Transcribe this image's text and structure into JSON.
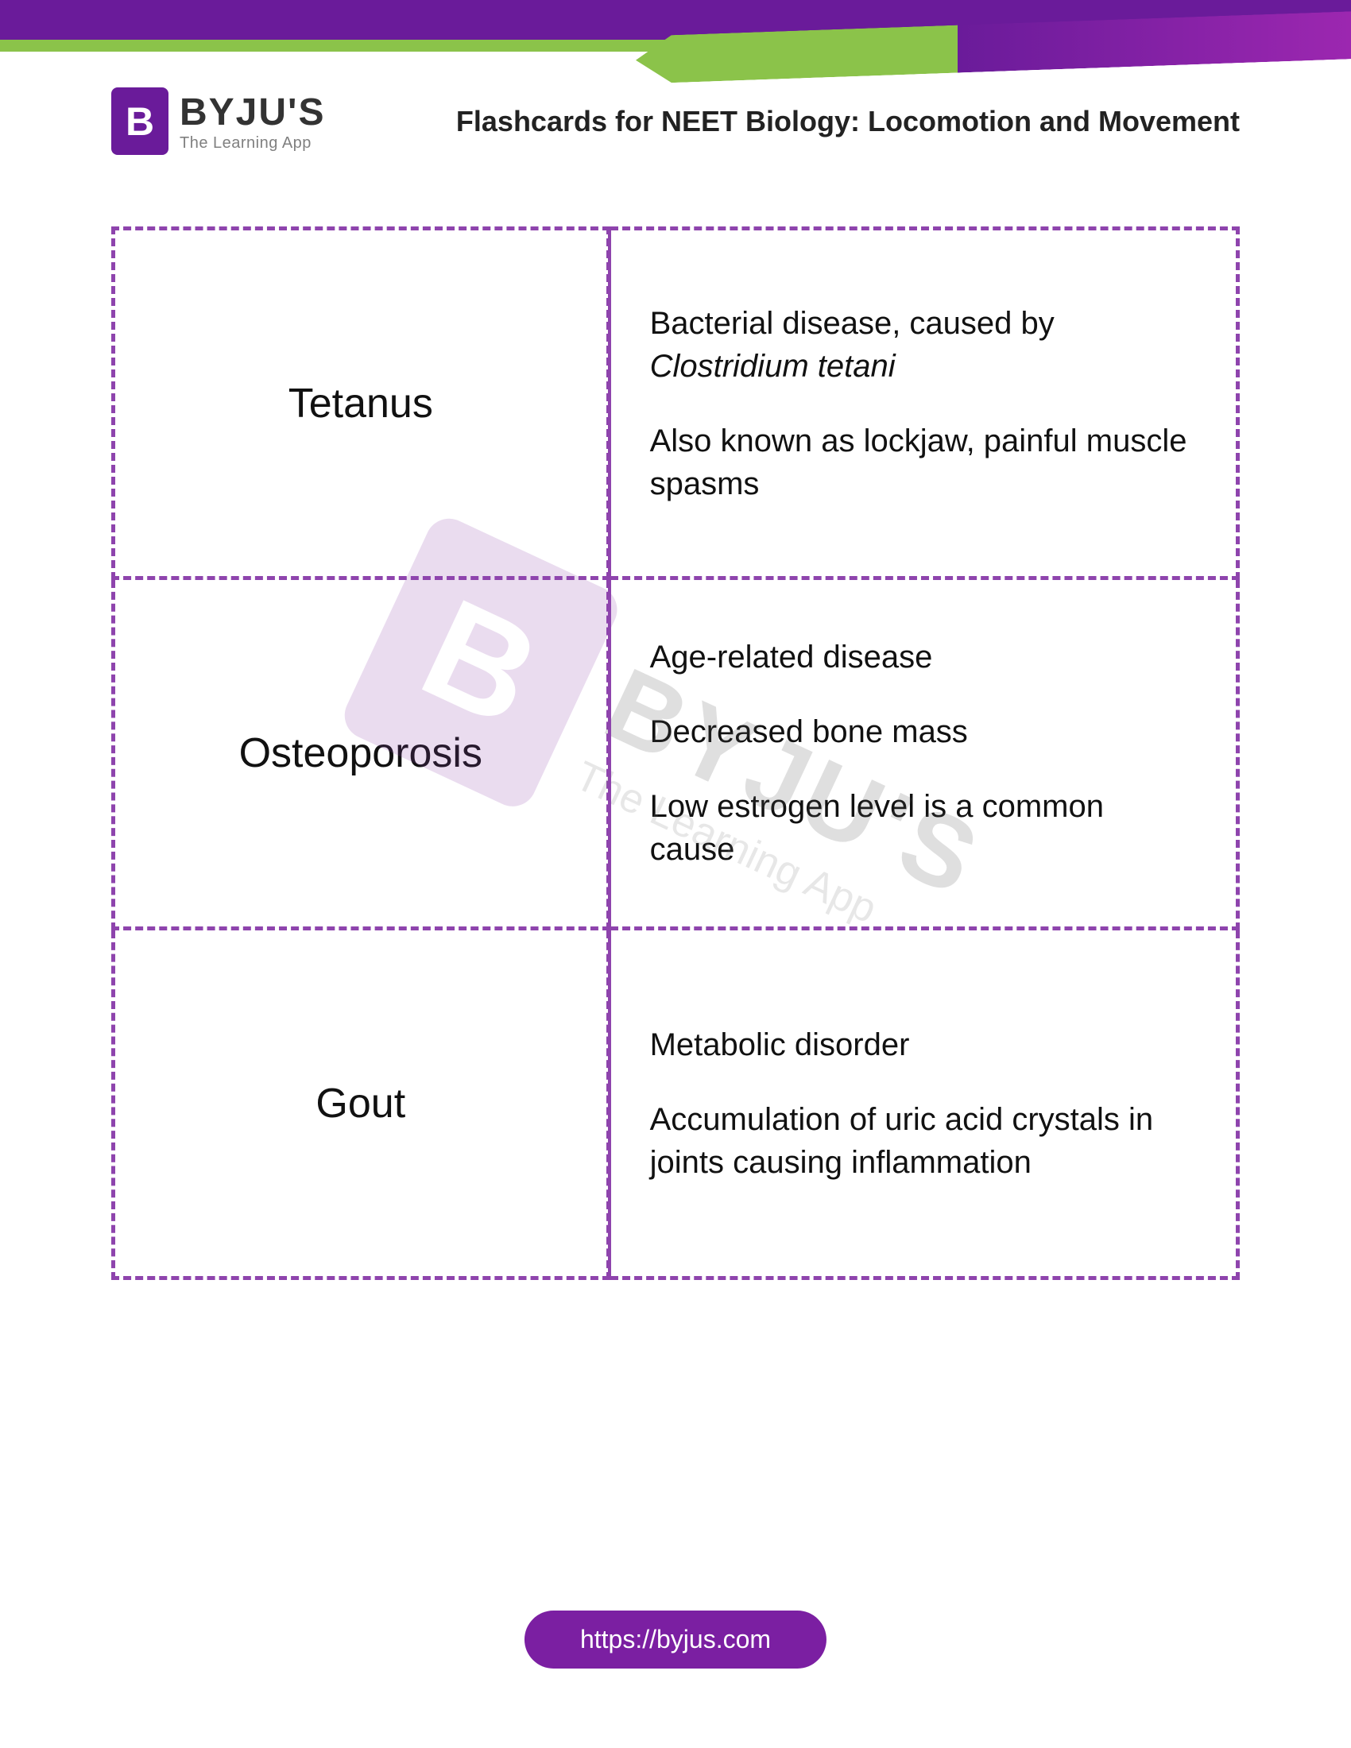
{
  "brand": {
    "logo_letter": "B",
    "name": "BYJU'S",
    "tagline": "The Learning App"
  },
  "page_title": "Flashcards for NEET Biology: Locomotion and Movement",
  "cards": [
    {
      "term": "Tetanus",
      "def_line1_a": "Bacterial disease, caused by ",
      "def_line1_b": "Clostridium tetani",
      "def_line2": "Also known as lockjaw, painful muscle spasms"
    },
    {
      "term": "Osteoporosis",
      "def_line1": "Age-related disease",
      "def_line2": "Decreased bone mass",
      "def_line3": "Low estrogen level is a common cause"
    },
    {
      "term": "Gout",
      "def_line1": "Metabolic disorder",
      "def_line2": "Accumulation of uric acid crystals in joints causing inflammation"
    }
  ],
  "footer_url": "https://byjus.com",
  "colors": {
    "border": "#8e44ad",
    "top_bar": "#6a1b9a",
    "accent_green": "#8bc34a",
    "text": "#111111",
    "footer_bg": "#7b1fa2"
  }
}
